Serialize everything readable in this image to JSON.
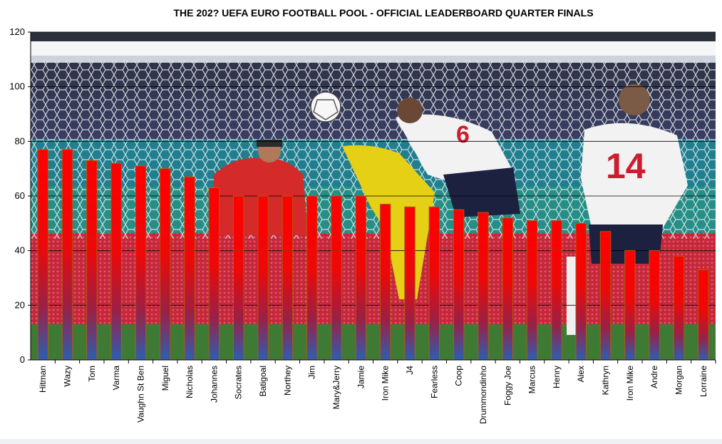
{
  "chart_data": {
    "type": "bar",
    "title": "THE 202? UEFA EURO FOOTBALL POOL - OFFICIAL LEADERBOARD QUARTER FINALS",
    "xlabel": "",
    "ylabel": "",
    "ylim": [
      0,
      120
    ],
    "yticks": [
      0,
      20,
      40,
      60,
      80,
      100,
      120
    ],
    "grid": true,
    "legend": "none",
    "background": "football match photograph",
    "colors": {
      "bar_top": "#ff0000",
      "bar_bottom": "#2b5fb0",
      "bar_edge": "#b05a10",
      "grid": "#000000"
    },
    "categories": [
      "Hitman",
      "Wazy",
      "Tom",
      "Varma",
      "Vaughn St Ben",
      "Miguel",
      "Nicholas",
      "Johannes",
      "Socrates",
      "Batigoal",
      "Northey",
      "Jim",
      "Mary&Jerry",
      "Jamie",
      "Iron Mike",
      "J4",
      "Fearless",
      "Coop",
      "Drummondinho",
      "Foggy Joe",
      "Marcus",
      "Henry",
      "Alex",
      "Kathryn",
      "Iron Mike",
      "Andre",
      "Morgan",
      "Lorraine"
    ],
    "values": [
      77,
      77,
      73,
      72,
      71,
      70,
      67,
      63,
      60,
      60,
      60,
      60,
      60,
      60,
      57,
      56,
      56,
      55,
      54,
      52,
      51,
      51,
      50,
      47,
      40,
      40,
      38,
      33
    ]
  }
}
